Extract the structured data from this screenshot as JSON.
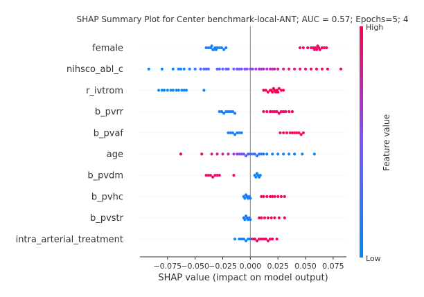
{
  "chart_data": {
    "type": "scatter",
    "title": "SHAP Summary Plot for Center benchmark-local-ANT; AUC = 0.57; Epochs=5; 4",
    "xlabel": "SHAP value (impact on model output)",
    "xlim": [
      -0.1,
      0.087
    ],
    "xticks": [
      -0.075,
      -0.05,
      -0.025,
      0.0,
      0.025,
      0.05,
      0.075
    ],
    "xtick_labels": [
      "−0.075",
      "−0.050",
      "−0.025",
      "0.000",
      "0.025",
      "0.050",
      "0.075"
    ],
    "colorbar": {
      "label": "Feature value",
      "high_label": "High",
      "low_label": "Low",
      "low_color": "#008afb",
      "mid_color": "#7c52ff",
      "high_color": "#ff0051"
    },
    "features": [
      {
        "name": "female",
        "points": [
          [
            -0.036,
            0.1
          ],
          [
            -0.034,
            0.15
          ],
          [
            -0.038,
            0.15
          ],
          [
            -0.032,
            0.1
          ],
          [
            -0.03,
            0.1
          ],
          [
            -0.028,
            0.1
          ],
          [
            -0.026,
            0.1
          ],
          [
            -0.024,
            0.1
          ],
          [
            -0.022,
            0.1
          ],
          [
            -0.04,
            0.1
          ],
          [
            -0.035,
            0.1
          ],
          [
            -0.033,
            0.1
          ],
          [
            -0.031,
            0.1
          ],
          [
            0.045,
            0.9
          ],
          [
            0.048,
            0.9
          ],
          [
            0.052,
            0.95
          ],
          [
            0.055,
            0.95
          ],
          [
            0.057,
            0.95
          ],
          [
            0.058,
            0.95
          ],
          [
            0.059,
            0.95
          ],
          [
            0.06,
            0.95
          ],
          [
            0.061,
            0.95
          ],
          [
            0.062,
            0.95
          ],
          [
            0.063,
            0.95
          ],
          [
            0.065,
            0.95
          ],
          [
            0.067,
            0.95
          ],
          [
            0.069,
            0.95
          ]
        ]
      },
      {
        "name": "nihsco_abl_c",
        "points": [
          [
            -0.092,
            0.0
          ],
          [
            -0.08,
            0.05
          ],
          [
            -0.07,
            0.05
          ],
          [
            -0.065,
            0.1
          ],
          [
            -0.063,
            0.1
          ],
          [
            -0.06,
            0.05
          ],
          [
            -0.055,
            0.1
          ],
          [
            -0.05,
            0.2
          ],
          [
            -0.045,
            0.3
          ],
          [
            -0.042,
            0.3
          ],
          [
            -0.04,
            0.3
          ],
          [
            -0.038,
            0.3
          ],
          [
            -0.03,
            0.35
          ],
          [
            -0.028,
            0.35
          ],
          [
            -0.025,
            0.4
          ],
          [
            -0.022,
            0.4
          ],
          [
            -0.02,
            0.4
          ],
          [
            -0.015,
            0.45
          ],
          [
            -0.012,
            0.45
          ],
          [
            -0.01,
            0.5
          ],
          [
            -0.008,
            0.5
          ],
          [
            -0.005,
            0.5
          ],
          [
            -0.003,
            0.55
          ],
          [
            0.0,
            0.55
          ],
          [
            0.002,
            0.6
          ],
          [
            0.005,
            0.6
          ],
          [
            0.008,
            0.65
          ],
          [
            0.01,
            0.65
          ],
          [
            0.012,
            0.7
          ],
          [
            0.015,
            0.7
          ],
          [
            0.018,
            0.7
          ],
          [
            0.02,
            0.75
          ],
          [
            0.022,
            0.75
          ],
          [
            0.025,
            0.8
          ],
          [
            0.03,
            0.8
          ],
          [
            0.035,
            0.85
          ],
          [
            0.04,
            0.85
          ],
          [
            0.045,
            0.9
          ],
          [
            0.05,
            0.9
          ],
          [
            0.055,
            0.95
          ],
          [
            0.06,
            0.95
          ],
          [
            0.065,
            0.95
          ],
          [
            0.07,
            0.95
          ],
          [
            0.082,
            0.95
          ]
        ]
      },
      {
        "name": "r_ivtrom",
        "points": [
          [
            -0.083,
            0.0
          ],
          [
            -0.08,
            0.0
          ],
          [
            -0.078,
            0.0
          ],
          [
            -0.075,
            0.0
          ],
          [
            -0.072,
            0.0
          ],
          [
            -0.07,
            0.0
          ],
          [
            -0.067,
            0.0
          ],
          [
            -0.065,
            0.0
          ],
          [
            -0.062,
            0.0
          ],
          [
            -0.06,
            0.0
          ],
          [
            -0.058,
            0.0
          ],
          [
            -0.042,
            0.0
          ],
          [
            0.012,
            1.0
          ],
          [
            0.014,
            1.0
          ],
          [
            0.016,
            1.0
          ],
          [
            0.018,
            1.0
          ],
          [
            0.019,
            1.0
          ],
          [
            0.02,
            1.0
          ],
          [
            0.021,
            1.0
          ],
          [
            0.022,
            1.0
          ],
          [
            0.023,
            1.0
          ],
          [
            0.024,
            1.0
          ],
          [
            0.025,
            1.0
          ],
          [
            0.026,
            1.0
          ],
          [
            0.028,
            1.0
          ],
          [
            0.03,
            1.0
          ]
        ]
      },
      {
        "name": "b_pvrr",
        "points": [
          [
            -0.028,
            0.1
          ],
          [
            -0.026,
            0.1
          ],
          [
            -0.024,
            0.1
          ],
          [
            -0.022,
            0.1
          ],
          [
            -0.02,
            0.1
          ],
          [
            -0.018,
            0.1
          ],
          [
            -0.016,
            0.1
          ],
          [
            -0.014,
            0.1
          ],
          [
            0.012,
            0.95
          ],
          [
            0.015,
            0.95
          ],
          [
            0.018,
            0.95
          ],
          [
            0.02,
            0.95
          ],
          [
            0.022,
            0.95
          ],
          [
            0.024,
            0.95
          ],
          [
            0.026,
            0.95
          ],
          [
            0.028,
            0.95
          ],
          [
            0.03,
            0.95
          ],
          [
            0.032,
            0.95
          ],
          [
            0.035,
            0.95
          ],
          [
            0.038,
            0.95
          ]
        ]
      },
      {
        "name": "b_pvaf",
        "points": [
          [
            -0.02,
            0.1
          ],
          [
            -0.018,
            0.1
          ],
          [
            -0.016,
            0.1
          ],
          [
            -0.014,
            0.1
          ],
          [
            -0.012,
            0.1
          ],
          [
            -0.01,
            0.1
          ],
          [
            -0.008,
            0.1
          ],
          [
            0.027,
            0.95
          ],
          [
            0.03,
            0.95
          ],
          [
            0.033,
            0.95
          ],
          [
            0.036,
            0.95
          ],
          [
            0.038,
            0.95
          ],
          [
            0.04,
            0.95
          ],
          [
            0.042,
            0.95
          ],
          [
            0.044,
            0.95
          ],
          [
            0.046,
            0.95
          ],
          [
            0.048,
            0.95
          ]
        ]
      },
      {
        "name": "age",
        "points": [
          [
            -0.063,
            0.95
          ],
          [
            -0.044,
            0.9
          ],
          [
            -0.035,
            0.85
          ],
          [
            -0.03,
            0.8
          ],
          [
            -0.025,
            0.75
          ],
          [
            -0.02,
            0.7
          ],
          [
            -0.015,
            0.65
          ],
          [
            -0.012,
            0.6
          ],
          [
            -0.01,
            0.55
          ],
          [
            -0.008,
            0.5
          ],
          [
            -0.006,
            0.45
          ],
          [
            -0.004,
            0.4
          ],
          [
            -0.002,
            0.35
          ],
          [
            0.0,
            0.3
          ],
          [
            0.002,
            0.25
          ],
          [
            0.004,
            0.2
          ],
          [
            0.006,
            0.2
          ],
          [
            0.008,
            0.15
          ],
          [
            0.01,
            0.15
          ],
          [
            0.012,
            0.1
          ],
          [
            0.015,
            0.1
          ],
          [
            0.02,
            0.05
          ],
          [
            0.025,
            0.1
          ],
          [
            0.03,
            0.1
          ],
          [
            0.035,
            0.1
          ],
          [
            0.04,
            0.05
          ],
          [
            0.047,
            0.0
          ],
          [
            0.058,
            0.0
          ]
        ]
      },
      {
        "name": "b_pvdm",
        "points": [
          [
            -0.04,
            0.95
          ],
          [
            -0.038,
            0.95
          ],
          [
            -0.036,
            0.95
          ],
          [
            -0.034,
            0.95
          ],
          [
            -0.032,
            0.95
          ],
          [
            -0.03,
            0.95
          ],
          [
            -0.028,
            0.95
          ],
          [
            -0.015,
            0.95
          ],
          [
            0.004,
            0.05
          ],
          [
            0.005,
            0.05
          ],
          [
            0.006,
            0.05
          ],
          [
            0.007,
            0.05
          ],
          [
            0.008,
            0.05
          ],
          [
            0.009,
            0.05
          ]
        ]
      },
      {
        "name": "b_pvhc",
        "points": [
          [
            -0.006,
            0.1
          ],
          [
            -0.005,
            0.1
          ],
          [
            -0.004,
            0.1
          ],
          [
            -0.003,
            0.1
          ],
          [
            -0.002,
            0.1
          ],
          [
            -0.001,
            0.1
          ],
          [
            0.0,
            0.1
          ],
          [
            0.01,
            0.95
          ],
          [
            0.012,
            0.95
          ],
          [
            0.015,
            0.95
          ],
          [
            0.018,
            0.95
          ],
          [
            0.02,
            0.95
          ],
          [
            0.022,
            0.95
          ],
          [
            0.025,
            0.95
          ],
          [
            0.028,
            0.95
          ],
          [
            0.031,
            0.95
          ]
        ]
      },
      {
        "name": "b_pvstr",
        "points": [
          [
            -0.006,
            0.1
          ],
          [
            -0.005,
            0.1
          ],
          [
            -0.004,
            0.1
          ],
          [
            -0.003,
            0.1
          ],
          [
            -0.002,
            0.1
          ],
          [
            -0.001,
            0.1
          ],
          [
            0.0,
            0.1
          ],
          [
            0.008,
            0.95
          ],
          [
            0.01,
            0.95
          ],
          [
            0.013,
            0.95
          ],
          [
            0.016,
            0.95
          ],
          [
            0.019,
            0.95
          ],
          [
            0.022,
            0.95
          ],
          [
            0.026,
            0.95
          ],
          [
            0.031,
            0.95
          ]
        ]
      },
      {
        "name": "intra_arterial_treatment",
        "points": [
          [
            -0.014,
            0.1
          ],
          [
            -0.01,
            0.1
          ],
          [
            -0.008,
            0.1
          ],
          [
            -0.006,
            0.1
          ],
          [
            -0.004,
            0.1
          ],
          [
            -0.002,
            0.1
          ],
          [
            0.0,
            0.1
          ],
          [
            0.002,
            0.95
          ],
          [
            0.004,
            0.95
          ],
          [
            0.006,
            0.95
          ],
          [
            0.008,
            0.95
          ],
          [
            0.01,
            0.95
          ],
          [
            0.012,
            0.95
          ],
          [
            0.014,
            0.95
          ],
          [
            0.016,
            0.95
          ],
          [
            0.018,
            0.95
          ],
          [
            0.02,
            0.95
          ],
          [
            0.024,
            0.95
          ]
        ]
      }
    ]
  }
}
